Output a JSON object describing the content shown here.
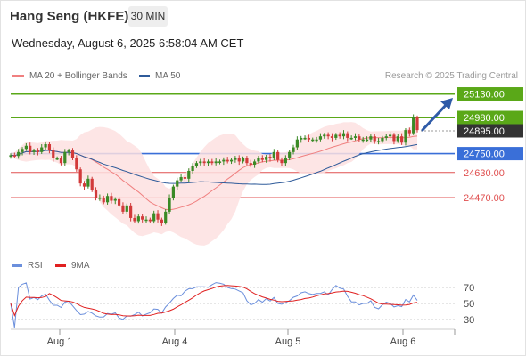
{
  "header": {
    "title": "Hang Seng (HKFE)",
    "timeframe": "30 MIN",
    "datetime": "Wednesday, August 6, 2025 6:58:04 AM CET"
  },
  "legend": {
    "ma20_label": "MA 20 + Bollinger Bands",
    "ma50_label": "MA 50",
    "credit": "Research © 2025 Trading Central",
    "rsi_label": "RSI",
    "ma9_label": "9MA"
  },
  "colors": {
    "green": "#5aa818",
    "blue": "#3a6fd8",
    "red": "#e05050",
    "dark": "#333333",
    "ma20": "#f08080",
    "ma50": "#2f5b9a",
    "rsi": "#6b8fdc",
    "ma9": "#e02020"
  },
  "chart_data": {
    "type": "candlestick",
    "x_ticks": [
      "Aug 1",
      "Aug 4",
      "Aug 5",
      "Aug 6"
    ],
    "y_range": [
      24250,
      25250
    ],
    "price_levels": [
      {
        "value": 25130,
        "label": "25130.00",
        "style": "resistance"
      },
      {
        "value": 24980,
        "label": "24980.00",
        "style": "resistance"
      },
      {
        "value": 24895,
        "label": "24895.00",
        "style": "last"
      },
      {
        "value": 24750,
        "label": "24750.00",
        "style": "pivot"
      },
      {
        "value": 24630,
        "label": "24630.00",
        "style": "support"
      },
      {
        "value": 24470,
        "label": "24470.00",
        "style": "support"
      }
    ],
    "rsi": {
      "ticks": [
        "70",
        "50",
        "30"
      ],
      "range": [
        20,
        80
      ]
    },
    "closes": [
      24740,
      24735,
      24760,
      24780,
      24800,
      24760,
      24770,
      24760,
      24790,
      24810,
      24770,
      24720,
      24720,
      24690,
      24760,
      24770,
      24720,
      24650,
      24560,
      24540,
      24590,
      24520,
      24470,
      24470,
      24440,
      24480,
      24450,
      24460,
      24420,
      24380,
      24420,
      24340,
      24320,
      24350,
      24330,
      24330,
      24320,
      24370,
      24330,
      24310,
      24380,
      24470,
      24540,
      24580,
      24600,
      24590,
      24640,
      24670,
      24690,
      24700,
      24690,
      24700,
      24690,
      24700,
      24700,
      24710,
      24700,
      24710,
      24720,
      24700,
      24720,
      24690,
      24680,
      24700,
      24720,
      24710,
      24730,
      24720,
      24760,
      24710,
      24690,
      24720,
      24760,
      24790,
      24840,
      24850,
      24850,
      24840,
      24840,
      24840,
      24860,
      24870,
      24860,
      24850,
      24870,
      24860,
      24880,
      24850,
      24850,
      24860,
      24840,
      24840,
      24840,
      24860,
      24830,
      24830,
      24850,
      24860,
      24870,
      24830,
      24860,
      24820,
      24900,
      24880,
      24980,
      24900
    ]
  }
}
